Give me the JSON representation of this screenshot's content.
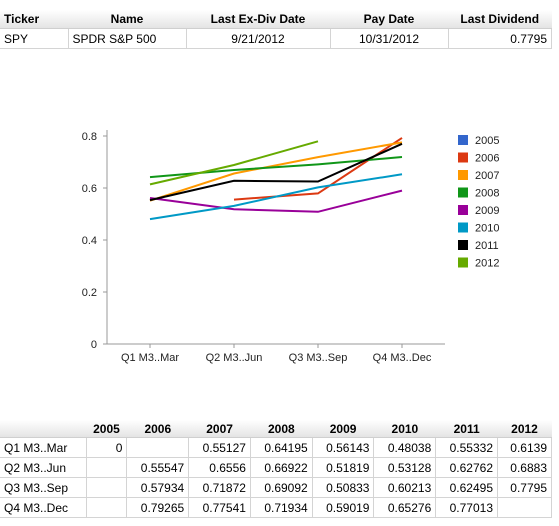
{
  "summary": {
    "headers": [
      "Ticker",
      "Name",
      "Last Ex-Div Date",
      "Pay Date",
      "Last Dividend"
    ],
    "row": [
      "SPY",
      "SPDR S&P 500",
      "9/21/2012",
      "10/31/2012",
      "0.7795"
    ]
  },
  "chart_data": {
    "type": "line",
    "categories": [
      "Q1 M3..Mar",
      "Q2 M3..Jun",
      "Q3 M3..Sep",
      "Q4 M3..Dec"
    ],
    "ylim": [
      0,
      0.8
    ],
    "yticks": [
      "0",
      "0.2",
      "0.4",
      "0.6",
      "0.8"
    ],
    "grid": false,
    "legend_position": "right",
    "series": [
      {
        "name": "2005",
        "color": "#3366cc",
        "values": [
          0,
          null,
          null,
          null
        ]
      },
      {
        "name": "2006",
        "color": "#dc3912",
        "values": [
          null,
          0.55547,
          0.57934,
          0.79265
        ]
      },
      {
        "name": "2007",
        "color": "#ff9900",
        "values": [
          0.55127,
          0.6556,
          0.71872,
          0.77541
        ]
      },
      {
        "name": "2008",
        "color": "#109618",
        "values": [
          0.64195,
          0.66922,
          0.69092,
          0.71934
        ]
      },
      {
        "name": "2009",
        "color": "#990099",
        "values": [
          0.56143,
          0.51819,
          0.50833,
          0.59019
        ]
      },
      {
        "name": "2010",
        "color": "#0099c6",
        "values": [
          0.48038,
          0.53128,
          0.60213,
          0.65276
        ]
      },
      {
        "name": "2011",
        "color": "#000000",
        "values": [
          0.55332,
          0.62762,
          0.62495,
          0.77013
        ]
      },
      {
        "name": "2012",
        "color": "#66aa00",
        "values": [
          0.6139,
          0.6883,
          0.7795,
          null
        ]
      }
    ]
  },
  "table": {
    "headers": [
      "",
      "2005",
      "2006",
      "2007",
      "2008",
      "2009",
      "2010",
      "2011",
      "2012"
    ],
    "rows": [
      [
        "Q1 M3..Mar",
        "0",
        "",
        "0.55127",
        "0.64195",
        "0.56143",
        "0.48038",
        "0.55332",
        "0.6139"
      ],
      [
        "Q2 M3..Jun",
        "",
        "0.55547",
        "0.6556",
        "0.66922",
        "0.51819",
        "0.53128",
        "0.62762",
        "0.6883"
      ],
      [
        "Q3 M3..Sep",
        "",
        "0.57934",
        "0.71872",
        "0.69092",
        "0.50833",
        "0.60213",
        "0.62495",
        "0.7795"
      ],
      [
        "Q4 M3..Dec",
        "",
        "0.79265",
        "0.77541",
        "0.71934",
        "0.59019",
        "0.65276",
        "0.77013",
        ""
      ]
    ]
  }
}
